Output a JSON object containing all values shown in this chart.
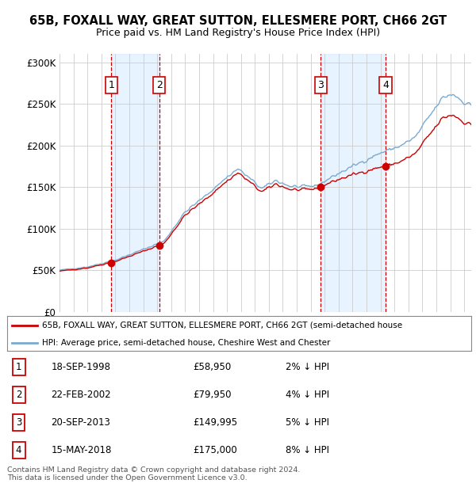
{
  "title": "65B, FOXALL WAY, GREAT SUTTON, ELLESMERE PORT, CH66 2GT",
  "subtitle": "Price paid vs. HM Land Registry's House Price Index (HPI)",
  "ylim": [
    0,
    310000
  ],
  "yticks": [
    0,
    50000,
    100000,
    150000,
    200000,
    250000,
    300000
  ],
  "ytick_labels": [
    "£0",
    "£50K",
    "£100K",
    "£150K",
    "£200K",
    "£250K",
    "£300K"
  ],
  "sale_dates_num": [
    1998.72,
    2002.14,
    2013.72,
    2018.37
  ],
  "sale_prices": [
    58950,
    79950,
    149995,
    175000
  ],
  "sale_labels": [
    "1",
    "2",
    "3",
    "4"
  ],
  "sale_color": "#cc0000",
  "hpi_color": "#7aaad0",
  "vline_color": "#cc0000",
  "shade_color": "#ddeeff",
  "transaction_info": [
    {
      "num": "1",
      "date": "18-SEP-1998",
      "price": "£58,950",
      "hpi": "2% ↓ HPI"
    },
    {
      "num": "2",
      "date": "22-FEB-2002",
      "price": "£79,950",
      "hpi": "4% ↓ HPI"
    },
    {
      "num": "3",
      "date": "20-SEP-2013",
      "price": "£149,995",
      "hpi": "5% ↓ HPI"
    },
    {
      "num": "4",
      "date": "15-MAY-2018",
      "price": "£175,000",
      "hpi": "8% ↓ HPI"
    }
  ],
  "legend_label_red": "65B, FOXALL WAY, GREAT SUTTON, ELLESMERE PORT, CH66 2GT (semi-detached house",
  "legend_label_blue": "HPI: Average price, semi-detached house, Cheshire West and Chester",
  "footer": "Contains HM Land Registry data © Crown copyright and database right 2024.\nThis data is licensed under the Open Government Licence v3.0.",
  "background_color": "#ffffff",
  "xlim_start": 1995.0,
  "xlim_end": 2024.5
}
